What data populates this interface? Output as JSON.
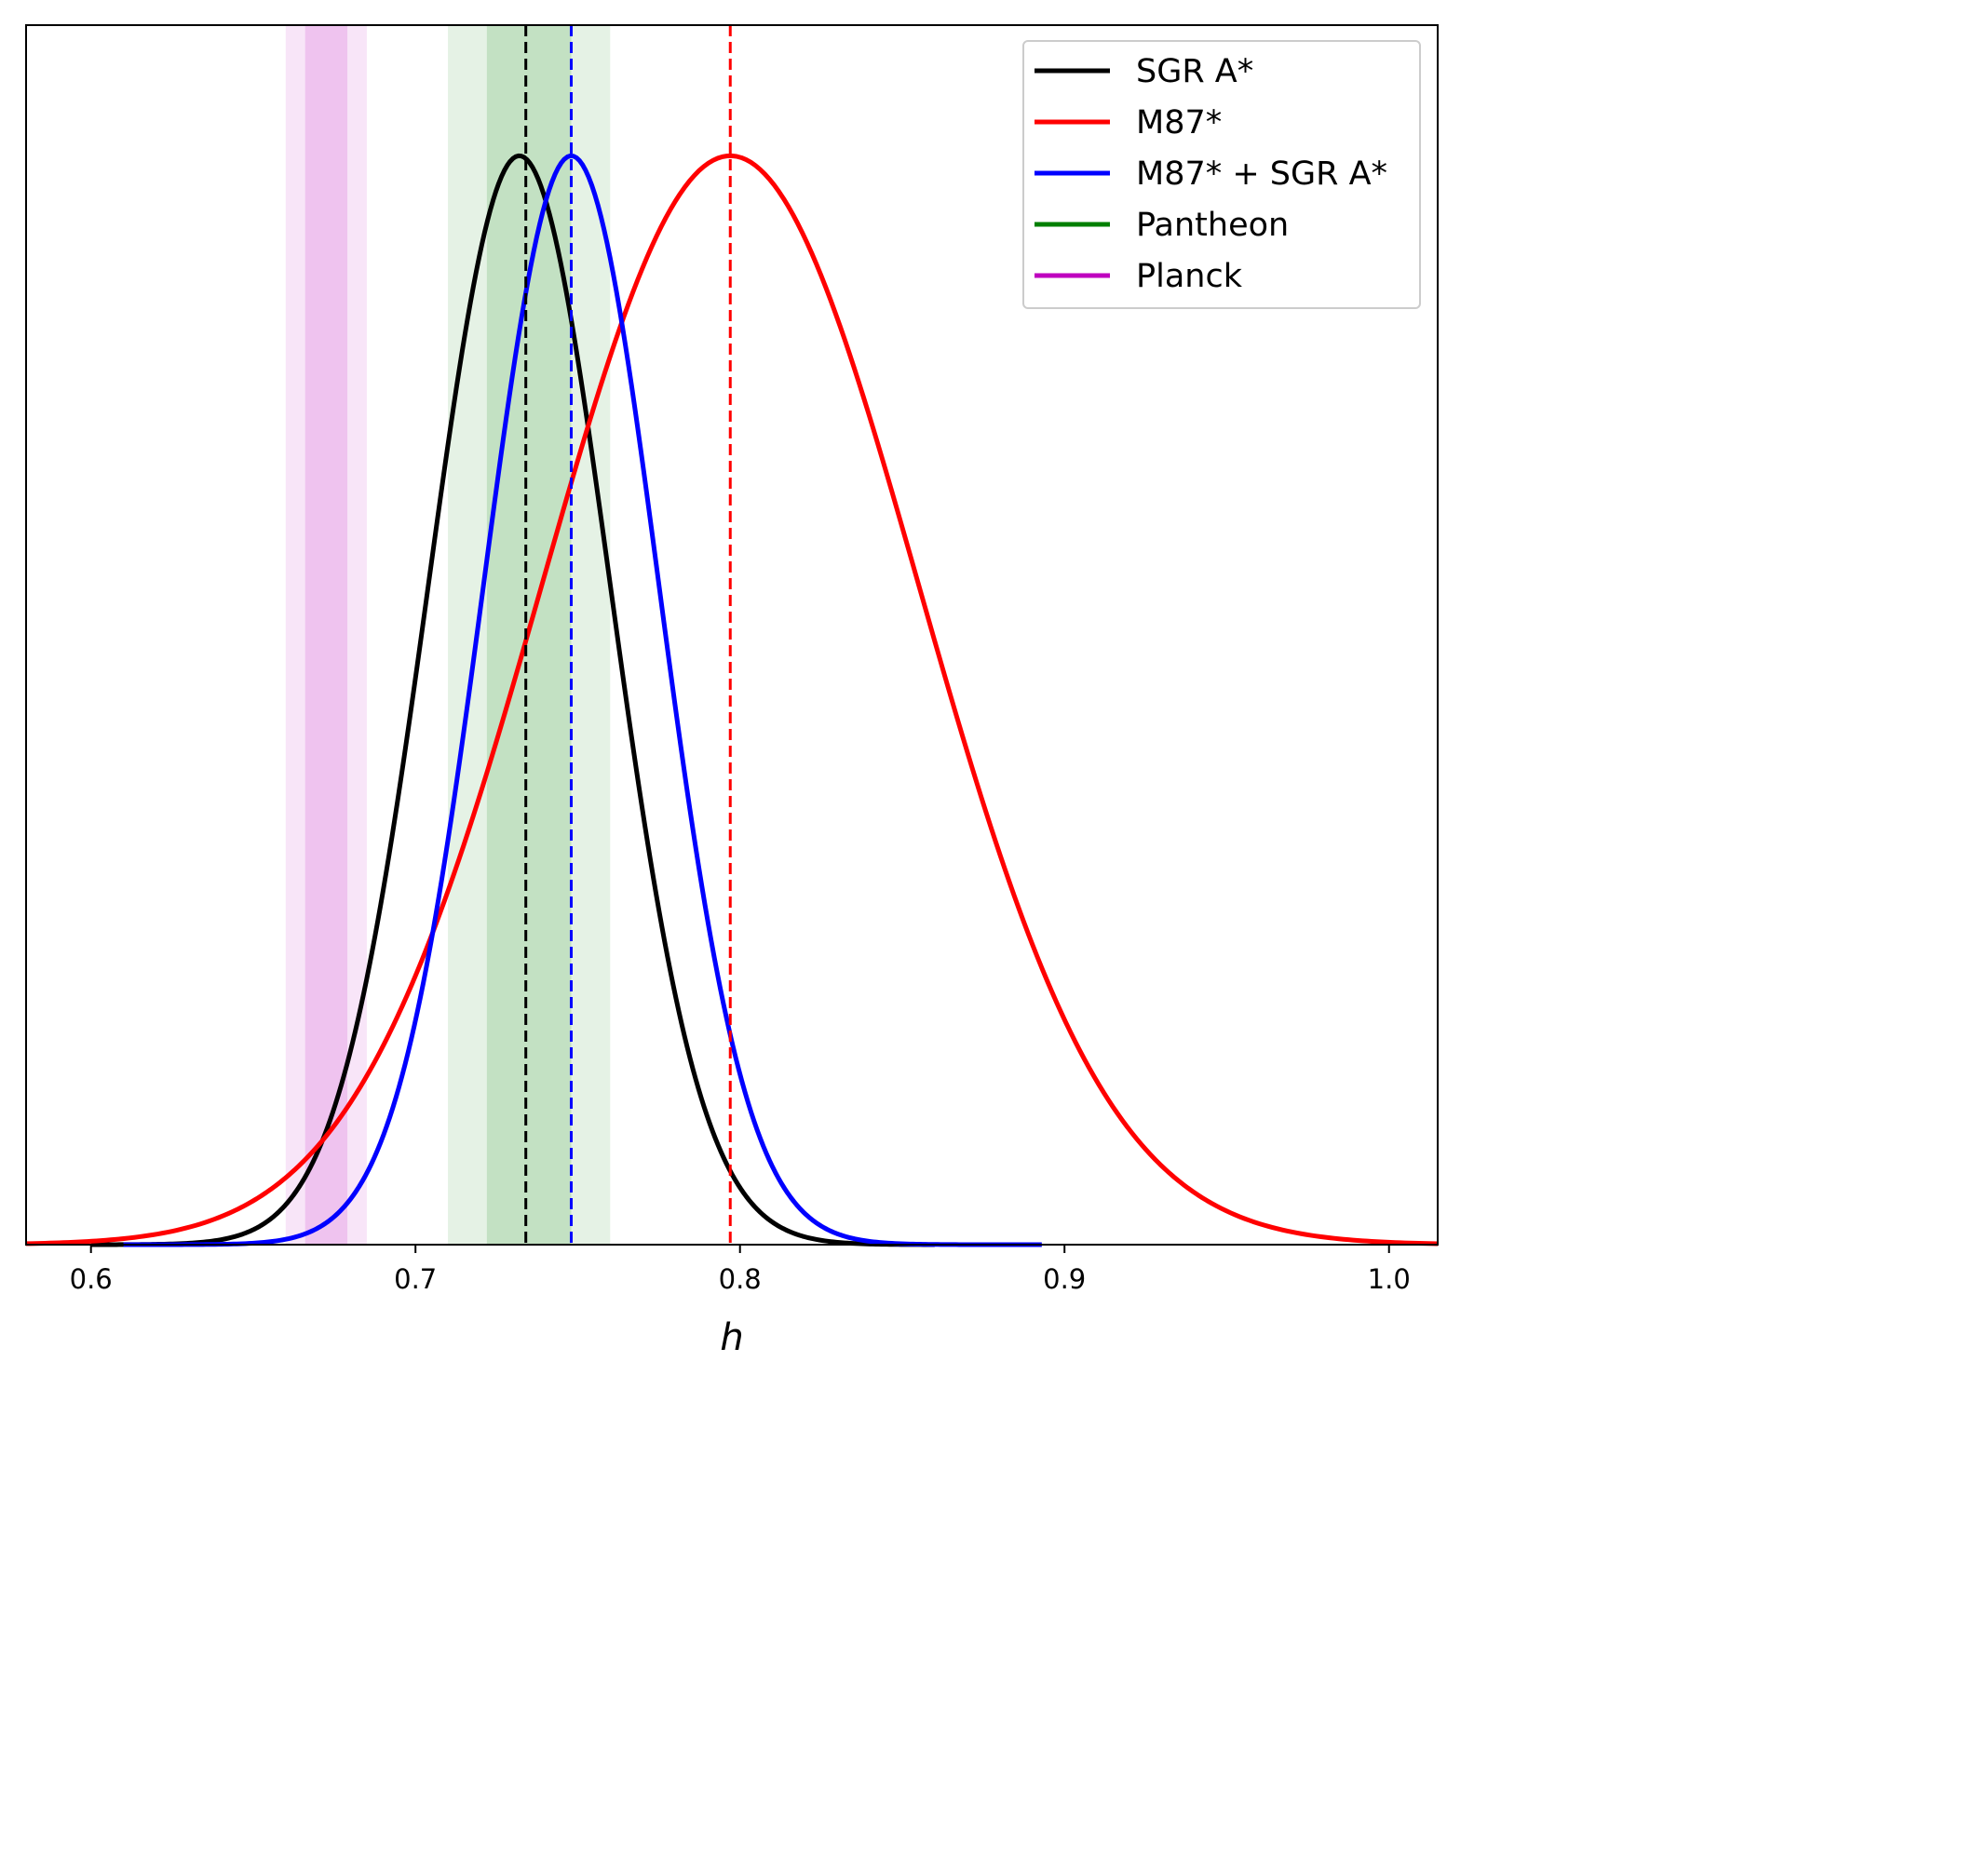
{
  "chart_data": {
    "type": "line",
    "title": "",
    "xlabel": "h",
    "ylabel": "",
    "xlim": [
      0.58,
      1.015
    ],
    "ylim": [
      0,
      1.12
    ],
    "xticks": [
      "0.6",
      "0.7",
      "0.8",
      "0.9",
      "1.0"
    ],
    "xtick_values": [
      0.6,
      0.7,
      0.8,
      0.9,
      1.0
    ],
    "legend_position": "top-right",
    "series": [
      {
        "name": "SGR A*",
        "color": "#000000",
        "kind": "gaussian",
        "mean": 0.732,
        "sigma": 0.028,
        "x_range": [
          0.6,
          0.86
        ],
        "peak_marker": 0.734
      },
      {
        "name": "M87*",
        "color": "#ff0000",
        "kind": "gaussian",
        "mean": 0.797,
        "sigma": 0.058,
        "x_range": [
          0.58,
          1.015
        ],
        "peak_marker": 0.797
      },
      {
        "name": "M87* + SGR A*",
        "color": "#0000ff",
        "kind": "gaussian",
        "mean": 0.748,
        "sigma": 0.027,
        "x_range": [
          0.61,
          0.893
        ],
        "peak_marker": 0.748
      },
      {
        "name": "Pantheon",
        "color": "#007f00",
        "kind": "band",
        "inner": [
          0.722,
          0.748
        ],
        "outer": [
          0.71,
          0.76
        ]
      },
      {
        "name": "Planck",
        "color": "#bf00bf",
        "kind": "band",
        "inner": [
          0.666,
          0.679
        ],
        "outer": [
          0.66,
          0.685
        ]
      }
    ]
  }
}
